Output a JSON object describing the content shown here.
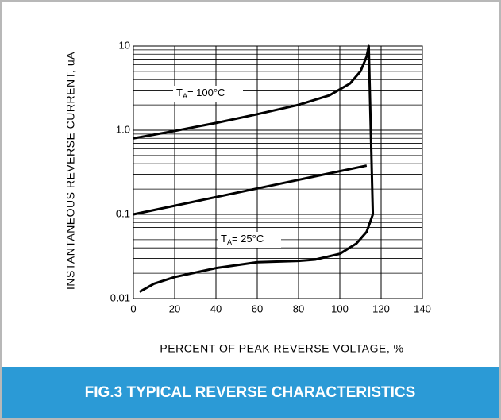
{
  "chart_data": {
    "type": "line",
    "title": "FIG.3 TYPICAL REVERSE CHARACTERISTICS",
    "x_label": "PERCENT OF PEAK REVERSE VOLTAGE, %",
    "y_label": "INSTANTANEOUS REVERSE CURRENT, uA",
    "log_y": true,
    "grid": true,
    "color": "#000000",
    "xlim": [
      0,
      140
    ],
    "ylim": [
      0.01,
      10
    ],
    "xticks": [
      0,
      20,
      40,
      60,
      80,
      100,
      120,
      140
    ],
    "yticks": [
      0.01,
      0.1,
      {
        "value": 1,
        "label": "1.0"
      },
      10
    ],
    "yminorticks": [
      0.02,
      0.03,
      0.04,
      0.05,
      0.06,
      0.07,
      0.08,
      0.09,
      0.2,
      0.3,
      0.4,
      0.5,
      0.6,
      0.7,
      0.8,
      0.9,
      2,
      3,
      4,
      5,
      6,
      7,
      8,
      9
    ],
    "annotations": [
      {
        "text": "T",
        "subscript": "A",
        "suffix": "= 100°C"
      },
      {
        "text": "T",
        "subscript": "A",
        "suffix": "= 25°C"
      }
    ],
    "series": [
      {
        "x": [
          0,
          20,
          40,
          60,
          80,
          95,
          105,
          110,
          113,
          114,
          116
        ],
        "values": [
          0.8,
          0.98,
          1.22,
          1.55,
          2.0,
          2.6,
          3.6,
          5.0,
          7.5,
          10,
          0.1
        ]
      },
      {
        "x": [
          0,
          113
        ],
        "values": [
          0.1,
          0.38
        ]
      },
      {
        "x": [
          3,
          10,
          20,
          40,
          60,
          80,
          88,
          100,
          108,
          113,
          116
        ],
        "values": [
          0.012,
          0.015,
          0.018,
          0.023,
          0.027,
          0.028,
          0.029,
          0.034,
          0.045,
          0.062,
          0.1
        ]
      }
    ]
  }
}
